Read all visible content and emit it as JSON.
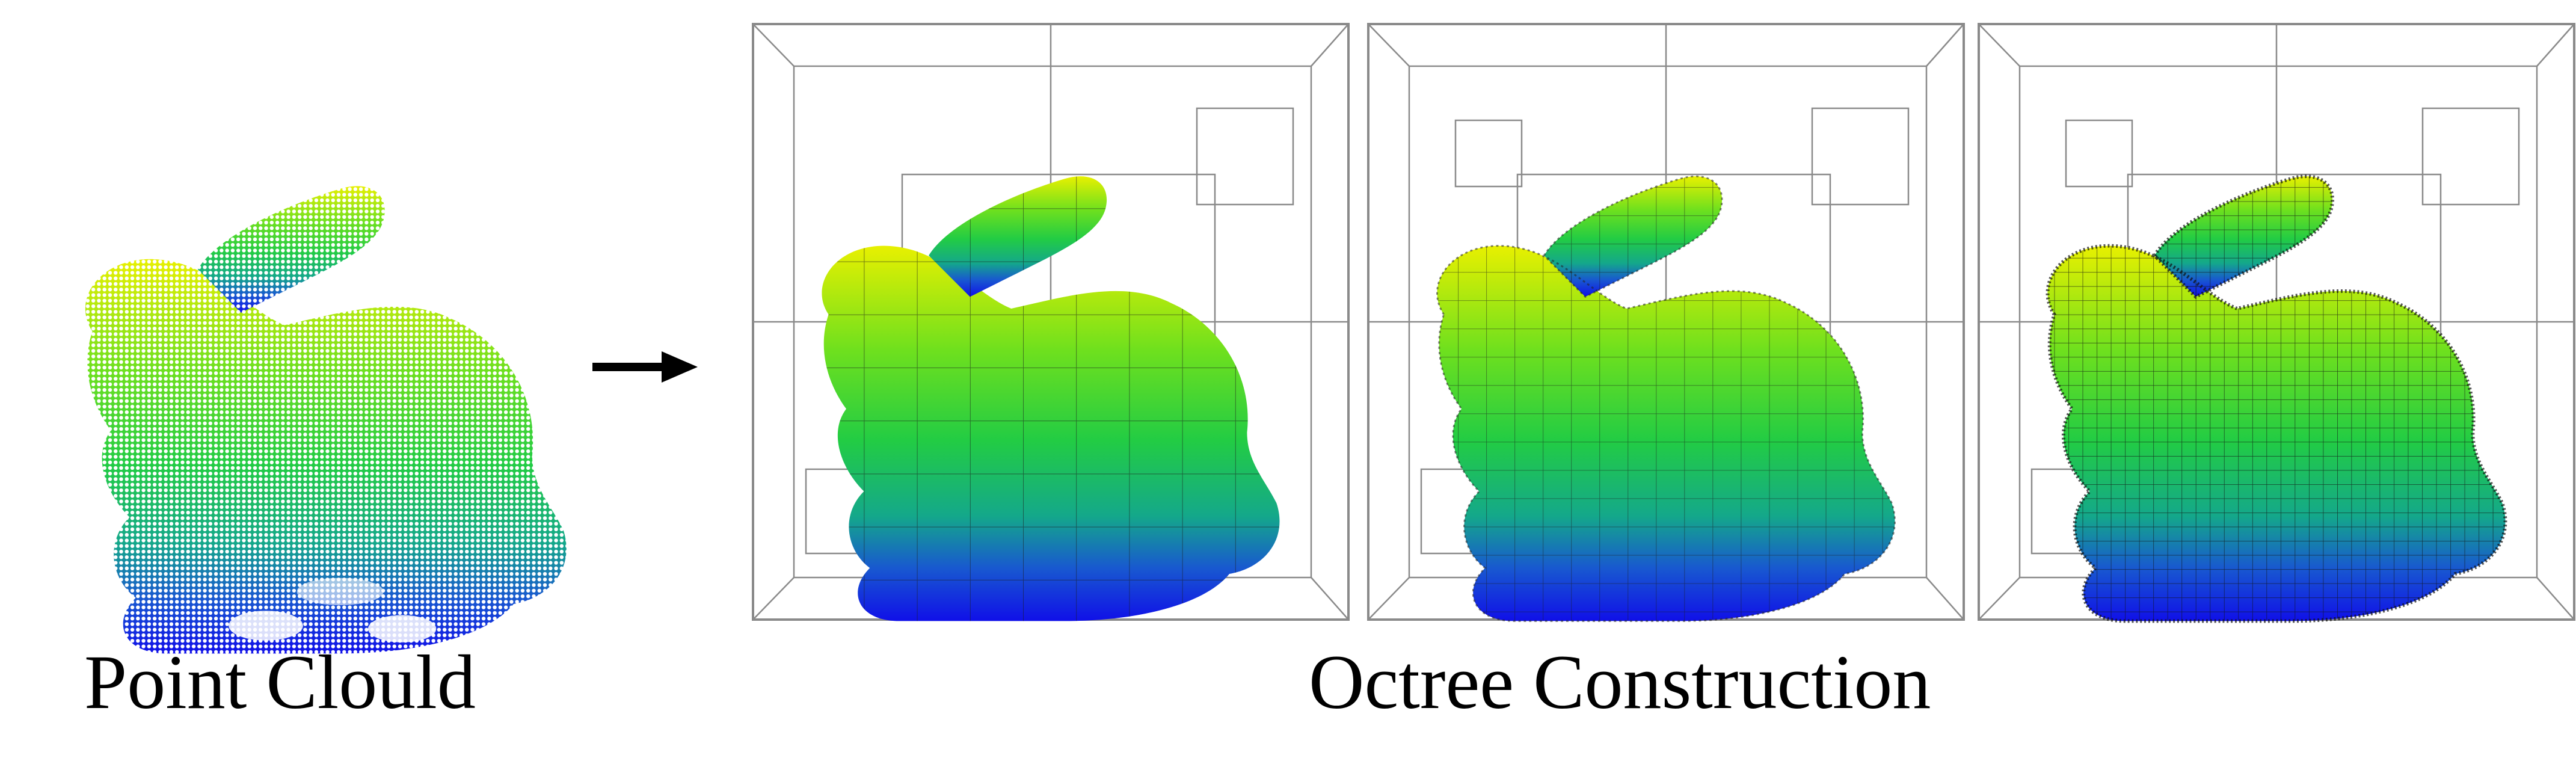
{
  "captions": {
    "point_cloud": "Point Clould",
    "octree": "Octree Construction"
  },
  "colors": {
    "bunny_top": "#e8f000",
    "bunny_mid": "#2ed23a",
    "bunny_low": "#16b07a",
    "bunny_bottom": "#1212e6",
    "frame": "#8a8a8a",
    "grid_line": "#1a1a1a",
    "arrow": "#000000"
  },
  "panels": [
    {
      "name": "octree-coarse",
      "subdivision_level": "coarse"
    },
    {
      "name": "octree-medium",
      "subdivision_level": "medium"
    },
    {
      "name": "octree-fine",
      "subdivision_level": "fine"
    }
  ],
  "icons": {
    "arrow": "right-arrow-icon"
  }
}
